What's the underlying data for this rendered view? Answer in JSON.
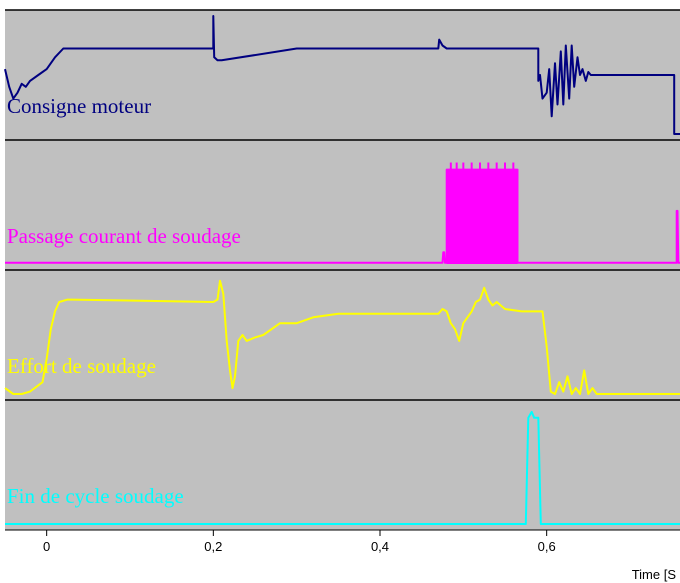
{
  "chart_data": {
    "type": "line",
    "xlabel": "Time [S",
    "xlim": [
      -0.05,
      0.76
    ],
    "xticks": [
      {
        "value": 0,
        "label": "0"
      },
      {
        "value": 0.2,
        "label": "0,2"
      },
      {
        "value": 0.4,
        "label": "0,4"
      },
      {
        "value": 0.6,
        "label": "0,6"
      }
    ],
    "background": "#c0c0c0",
    "strips": [
      {
        "name": "Consigne moteur",
        "color": "#000080",
        "ylim": [
          -1,
          1
        ],
        "x": [
          -0.05,
          -0.045,
          -0.04,
          -0.035,
          -0.03,
          -0.025,
          -0.02,
          -0.01,
          0.0,
          0.01,
          0.02,
          0.2,
          0.2,
          0.201,
          0.205,
          0.21,
          0.3,
          0.47,
          0.471,
          0.475,
          0.48,
          0.59,
          0.59,
          0.592,
          0.595,
          0.6,
          0.603,
          0.606,
          0.61,
          0.613,
          0.617,
          0.62,
          0.623,
          0.627,
          0.63,
          0.633,
          0.637,
          0.64,
          0.643,
          0.647,
          0.65,
          0.653,
          0.66,
          0.69,
          0.753,
          0.753,
          0.76
        ],
        "y": [
          0.1,
          -0.2,
          -0.4,
          -0.3,
          -0.15,
          -0.2,
          -0.1,
          0.0,
          0.1,
          0.3,
          0.45,
          0.45,
          1.0,
          0.3,
          0.25,
          0.25,
          0.45,
          0.45,
          0.6,
          0.5,
          0.45,
          0.45,
          -0.1,
          0.0,
          -0.4,
          -0.3,
          0.1,
          -0.7,
          0.2,
          -0.5,
          0.4,
          -0.5,
          0.5,
          -0.4,
          0.5,
          -0.2,
          0.3,
          0.0,
          0.1,
          -0.1,
          0.05,
          0.0,
          0.0,
          0.0,
          0.0,
          -1.0,
          -1.0
        ]
      },
      {
        "name": "Passage courant de soudage",
        "color": "#ff00ff",
        "ylim": [
          0,
          1
        ],
        "x": [
          -0.05,
          0.475,
          0.476,
          0.477,
          0.478,
          0.48,
          0.48,
          0.565,
          0.565,
          0.7,
          0.756,
          0.756,
          0.757,
          0.758,
          0.76
        ],
        "y": [
          0.01,
          0.01,
          0.1,
          0.1,
          0.01,
          0.01,
          0.8,
          0.8,
          0.01,
          0.01,
          0.01,
          0.45,
          0.45,
          0.01,
          0.01
        ],
        "blocks": [
          {
            "x0": 0.48,
            "x1": 0.565,
            "y": 0.8
          }
        ],
        "spikes": [
          0.485,
          0.492,
          0.5,
          0.51,
          0.52,
          0.53,
          0.54,
          0.55,
          0.56
        ]
      },
      {
        "name": "Effort de soudage",
        "color": "#ffff00",
        "ylim": [
          0,
          1
        ],
        "x": [
          -0.05,
          -0.04,
          -0.03,
          -0.02,
          -0.005,
          0.0,
          0.005,
          0.01,
          0.015,
          0.025,
          0.03,
          0.2,
          0.205,
          0.208,
          0.212,
          0.216,
          0.22,
          0.223,
          0.226,
          0.23,
          0.235,
          0.24,
          0.25,
          0.26,
          0.28,
          0.3,
          0.32,
          0.35,
          0.4,
          0.45,
          0.47,
          0.475,
          0.48,
          0.485,
          0.49,
          0.495,
          0.5,
          0.505,
          0.51,
          0.515,
          0.52,
          0.525,
          0.53,
          0.535,
          0.54,
          0.545,
          0.55,
          0.57,
          0.595,
          0.6,
          0.605,
          0.61,
          0.615,
          0.62,
          0.625,
          0.63,
          0.635,
          0.64,
          0.645,
          0.65,
          0.655,
          0.66,
          0.665,
          0.67,
          0.69,
          0.76
        ],
        "y": [
          0.05,
          0.0,
          0.0,
          0.02,
          0.1,
          0.3,
          0.55,
          0.7,
          0.78,
          0.8,
          0.8,
          0.78,
          0.8,
          0.96,
          0.85,
          0.45,
          0.2,
          0.05,
          0.15,
          0.45,
          0.5,
          0.45,
          0.48,
          0.5,
          0.6,
          0.6,
          0.65,
          0.68,
          0.68,
          0.68,
          0.68,
          0.72,
          0.7,
          0.6,
          0.55,
          0.45,
          0.6,
          0.65,
          0.7,
          0.78,
          0.8,
          0.9,
          0.8,
          0.75,
          0.78,
          0.75,
          0.72,
          0.7,
          0.7,
          0.4,
          0.02,
          0.0,
          0.1,
          0.02,
          0.15,
          0.0,
          0.05,
          0.0,
          0.2,
          0.0,
          0.05,
          0.0,
          0.0,
          0.0,
          0.0,
          0.0
        ]
      },
      {
        "name": "Fin de cycle soudage",
        "color": "#00ffff",
        "ylim": [
          0,
          1
        ],
        "x": [
          -0.05,
          0.575,
          0.578,
          0.582,
          0.585,
          0.59,
          0.593,
          0.76
        ],
        "y": [
          0.0,
          0.0,
          0.9,
          0.95,
          0.9,
          0.9,
          0.0,
          0.0
        ]
      }
    ]
  }
}
